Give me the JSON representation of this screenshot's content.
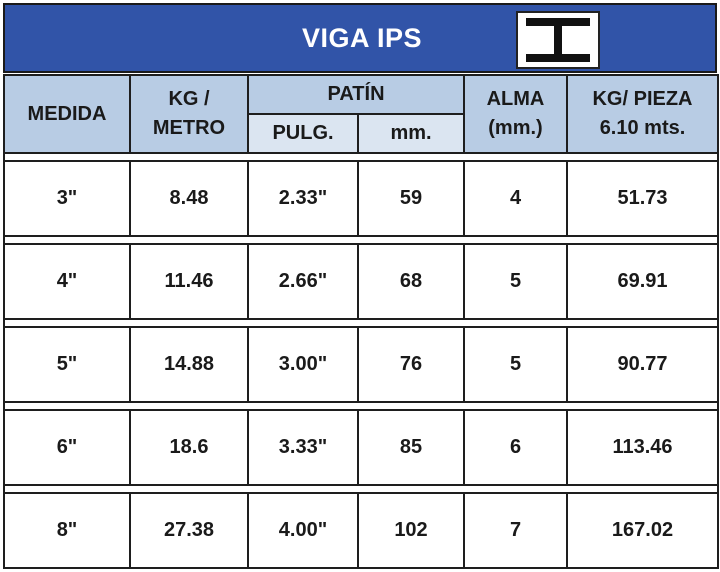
{
  "title": "VIGA IPS",
  "headers": {
    "medida": "MEDIDA",
    "kg_metro_line1": "KG /",
    "kg_metro_line2": "METRO",
    "patin": "PATÍN",
    "pulg": "PULG.",
    "mm": "mm.",
    "alma_line1": "ALMA",
    "alma_line2": "(mm.)",
    "kg_pieza_line1": "KG/ PIEZA",
    "kg_pieza_line2": "6.10 mts."
  },
  "rows": [
    {
      "medida": "3\"",
      "kg_metro": "8.48",
      "pulg": "2.33\"",
      "mm": "59",
      "alma": "4",
      "kg_pieza": "51.73"
    },
    {
      "medida": "4\"",
      "kg_metro": "11.46",
      "pulg": "2.66\"",
      "mm": "68",
      "alma": "5",
      "kg_pieza": "69.91"
    },
    {
      "medida": "5\"",
      "kg_metro": "14.88",
      "pulg": "3.00\"",
      "mm": "76",
      "alma": "5",
      "kg_pieza": "90.77"
    },
    {
      "medida": "6\"",
      "kg_metro": "18.6",
      "pulg": "3.33\"",
      "mm": "85",
      "alma": "6",
      "kg_pieza": "113.46"
    },
    {
      "medida": "8\"",
      "kg_metro": "27.38",
      "pulg": "4.00\"",
      "mm": "102",
      "alma": "7",
      "kg_pieza": "167.02"
    }
  ],
  "colors": {
    "title_bg": "#3154a8",
    "header_bg": "#b8cce4",
    "subheader_bg": "#dbe5f1"
  },
  "icons": {
    "beam": "i-beam-icon"
  }
}
